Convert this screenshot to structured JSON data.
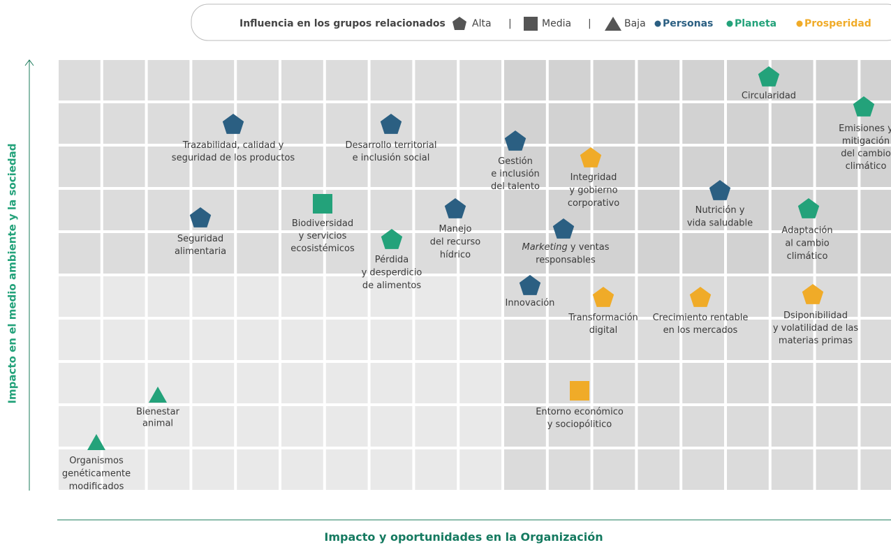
{
  "legend": {
    "title": "Influencia en los grupos relacionados",
    "alta": "Alta",
    "media": "Media",
    "baja": "Baja",
    "separator": "|",
    "personas": "Personas",
    "planeta": "Planeta",
    "prosperidad": "Prosperidad"
  },
  "y_axis_title": "Impacto en el medio ambiente y la sociedad",
  "x_axis_title": "Impacto y oportunidades en la Organización",
  "nodes": [
    {
      "lines": [
        "Circularidad"
      ],
      "shape": "pentagon",
      "group": "planeta"
    },
    {
      "lines": [
        "Emisiones y",
        "mitigación",
        "del cambio",
        "climático"
      ],
      "shape": "pentagon",
      "group": "planeta"
    },
    {
      "lines": [
        "Trazabilidad, calidad y",
        "seguridad de los productos"
      ],
      "shape": "pentagon",
      "group": "personas"
    },
    {
      "lines": [
        "Desarrollo territorial",
        "e inclusión social"
      ],
      "shape": "pentagon",
      "group": "personas"
    },
    {
      "lines": [
        "Gestión",
        "e inclusión",
        "del talento"
      ],
      "shape": "pentagon",
      "group": "personas"
    },
    {
      "lines": [
        "Integridad",
        "y gobierno",
        "corporativo"
      ],
      "shape": "pentagon",
      "group": "prosperidad"
    },
    {
      "lines": [
        "Nutrición y",
        "vida saludable"
      ],
      "shape": "pentagon",
      "group": "personas"
    },
    {
      "lines": [
        "Adaptación",
        "al cambio",
        "climático"
      ],
      "shape": "pentagon",
      "group": "planeta"
    },
    {
      "lines": [
        "Seguridad",
        "alimentaria"
      ],
      "shape": "pentagon",
      "group": "personas"
    },
    {
      "lines": [
        "Biodiversidad",
        "y servicios",
        "ecosistémicos"
      ],
      "shape": "square",
      "group": "planeta"
    },
    {
      "lines": [
        "Manejo",
        "del recurso",
        "hídrico"
      ],
      "shape": "pentagon",
      "group": "personas"
    },
    {
      "lines": [
        {
          "em": "Marketing",
          "text": " y ventas"
        },
        "responsables"
      ],
      "shape": "pentagon",
      "group": "personas"
    },
    {
      "lines": [
        "Pérdida",
        "y desperdicio",
        "de alimentos"
      ],
      "shape": "pentagon",
      "group": "planeta"
    },
    {
      "lines": [
        "Innovación"
      ],
      "shape": "pentagon",
      "group": "personas"
    },
    {
      "lines": [
        "Transformación",
        "digital"
      ],
      "shape": "pentagon",
      "group": "prosperidad"
    },
    {
      "lines": [
        "Crecimiento rentable",
        "en los mercados"
      ],
      "shape": "pentagon",
      "group": "prosperidad"
    },
    {
      "lines": [
        "Dsiponibilidad",
        "y volatilidad de las",
        "materias primas"
      ],
      "shape": "pentagon",
      "group": "prosperidad"
    },
    {
      "lines": [
        "Entorno económico",
        "y sociopólitico"
      ],
      "shape": "square",
      "group": "prosperidad"
    },
    {
      "lines": [
        "Bienestar",
        "animal"
      ],
      "shape": "triangle",
      "group": "planeta"
    },
    {
      "lines": [
        "Organismos",
        "genéticamente",
        "modificados"
      ],
      "shape": "triangle",
      "group": "planeta"
    }
  ]
}
